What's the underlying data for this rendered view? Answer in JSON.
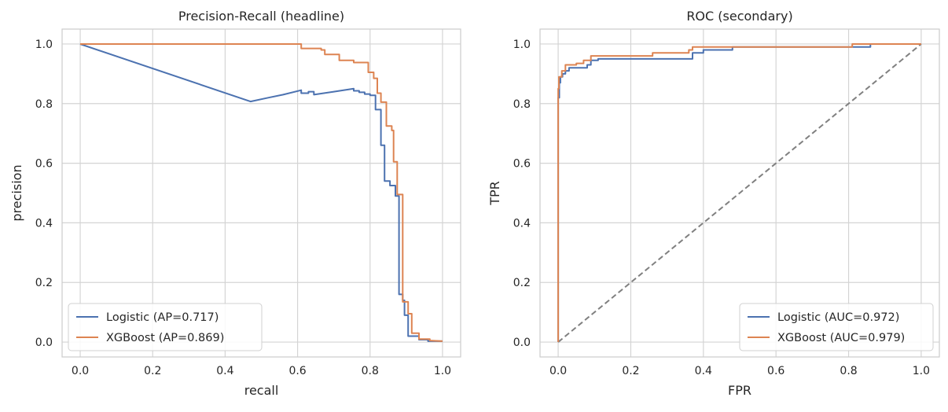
{
  "colors": {
    "logistic": "#4c72b0",
    "xgboost": "#dd8452",
    "diagonal": "#808080"
  },
  "chart_data": [
    {
      "type": "line",
      "title": "Precision-Recall (headline)",
      "xlabel": "recall",
      "ylabel": "precision",
      "xlim": [
        -0.05,
        1.05
      ],
      "ylim": [
        -0.05,
        1.05
      ],
      "xticks": [
        "0.0",
        "0.2",
        "0.4",
        "0.6",
        "0.8",
        "1.0"
      ],
      "yticks": [
        "0.0",
        "0.2",
        "0.4",
        "0.6",
        "0.8",
        "1.0"
      ],
      "grid": true,
      "legend_position": "lower-left",
      "series": [
        {
          "name": "Logistic (AP=0.717)",
          "step": true,
          "points": [
            [
              0.0,
              1.0
            ],
            [
              0.47,
              0.807
            ],
            [
              0.52,
              0.82
            ],
            [
              0.56,
              0.83
            ],
            [
              0.61,
              0.845
            ],
            [
              0.61,
              0.835
            ],
            [
              0.63,
              0.835
            ],
            [
              0.63,
              0.84
            ],
            [
              0.645,
              0.84
            ],
            [
              0.645,
              0.83
            ],
            [
              0.7,
              0.84
            ],
            [
              0.755,
              0.85
            ],
            [
              0.755,
              0.843
            ],
            [
              0.77,
              0.843
            ],
            [
              0.77,
              0.838
            ],
            [
              0.785,
              0.838
            ],
            [
              0.785,
              0.832
            ],
            [
              0.8,
              0.832
            ],
            [
              0.8,
              0.828
            ],
            [
              0.815,
              0.828
            ],
            [
              0.815,
              0.78
            ],
            [
              0.83,
              0.78
            ],
            [
              0.83,
              0.66
            ],
            [
              0.84,
              0.66
            ],
            [
              0.84,
              0.54
            ],
            [
              0.855,
              0.54
            ],
            [
              0.855,
              0.525
            ],
            [
              0.87,
              0.525
            ],
            [
              0.87,
              0.49
            ],
            [
              0.88,
              0.49
            ],
            [
              0.88,
              0.16
            ],
            [
              0.89,
              0.16
            ],
            [
              0.89,
              0.14
            ],
            [
              0.895,
              0.14
            ],
            [
              0.895,
              0.09
            ],
            [
              0.905,
              0.09
            ],
            [
              0.905,
              0.02
            ],
            [
              0.935,
              0.02
            ],
            [
              0.935,
              0.008
            ],
            [
              0.96,
              0.008
            ],
            [
              0.96,
              0.003
            ],
            [
              1.0,
              0.003
            ]
          ]
        },
        {
          "name": "XGBoost (AP=0.869)",
          "step": true,
          "points": [
            [
              0.0,
              1.0
            ],
            [
              0.61,
              1.0
            ],
            [
              0.61,
              0.985
            ],
            [
              0.665,
              0.985
            ],
            [
              0.665,
              0.98
            ],
            [
              0.675,
              0.98
            ],
            [
              0.675,
              0.965
            ],
            [
              0.715,
              0.965
            ],
            [
              0.715,
              0.945
            ],
            [
              0.755,
              0.945
            ],
            [
              0.755,
              0.938
            ],
            [
              0.795,
              0.938
            ],
            [
              0.795,
              0.905
            ],
            [
              0.81,
              0.905
            ],
            [
              0.81,
              0.885
            ],
            [
              0.82,
              0.885
            ],
            [
              0.82,
              0.835
            ],
            [
              0.83,
              0.835
            ],
            [
              0.83,
              0.805
            ],
            [
              0.845,
              0.805
            ],
            [
              0.845,
              0.725
            ],
            [
              0.86,
              0.725
            ],
            [
              0.86,
              0.71
            ],
            [
              0.865,
              0.71
            ],
            [
              0.865,
              0.605
            ],
            [
              0.875,
              0.605
            ],
            [
              0.875,
              0.495
            ],
            [
              0.89,
              0.495
            ],
            [
              0.89,
              0.135
            ],
            [
              0.905,
              0.135
            ],
            [
              0.905,
              0.095
            ],
            [
              0.915,
              0.095
            ],
            [
              0.915,
              0.03
            ],
            [
              0.935,
              0.03
            ],
            [
              0.935,
              0.01
            ],
            [
              0.965,
              0.01
            ],
            [
              0.965,
              0.005
            ],
            [
              1.0,
              0.003
            ]
          ]
        }
      ]
    },
    {
      "type": "line",
      "title": "ROC (secondary)",
      "xlabel": "FPR",
      "ylabel": "TPR",
      "xlim": [
        -0.05,
        1.05
      ],
      "ylim": [
        -0.05,
        1.05
      ],
      "xticks": [
        "0.0",
        "0.2",
        "0.4",
        "0.6",
        "0.8",
        "1.0"
      ],
      "yticks": [
        "0.0",
        "0.2",
        "0.4",
        "0.6",
        "0.8",
        "1.0"
      ],
      "grid": true,
      "legend_position": "lower-right",
      "diagonal": [
        [
          0,
          0
        ],
        [
          1,
          1
        ]
      ],
      "series": [
        {
          "name": "Logistic (AUC=0.972)",
          "step": true,
          "points": [
            [
              0,
              0
            ],
            [
              0,
              0.82
            ],
            [
              0.003,
              0.82
            ],
            [
              0.003,
              0.87
            ],
            [
              0.006,
              0.87
            ],
            [
              0.006,
              0.89
            ],
            [
              0.012,
              0.89
            ],
            [
              0.012,
              0.9
            ],
            [
              0.02,
              0.9
            ],
            [
              0.02,
              0.91
            ],
            [
              0.03,
              0.91
            ],
            [
              0.03,
              0.92
            ],
            [
              0.08,
              0.92
            ],
            [
              0.08,
              0.93
            ],
            [
              0.09,
              0.93
            ],
            [
              0.09,
              0.945
            ],
            [
              0.11,
              0.945
            ],
            [
              0.11,
              0.95
            ],
            [
              0.37,
              0.95
            ],
            [
              0.37,
              0.97
            ],
            [
              0.4,
              0.97
            ],
            [
              0.4,
              0.98
            ],
            [
              0.48,
              0.98
            ],
            [
              0.48,
              0.99
            ],
            [
              0.86,
              0.99
            ],
            [
              0.86,
              1.0
            ],
            [
              1.0,
              1.0
            ]
          ]
        },
        {
          "name": "XGBoost (AUC=0.979)",
          "step": true,
          "points": [
            [
              0,
              0
            ],
            [
              0,
              0.85
            ],
            [
              0.002,
              0.85
            ],
            [
              0.002,
              0.89
            ],
            [
              0.01,
              0.89
            ],
            [
              0.01,
              0.91
            ],
            [
              0.02,
              0.91
            ],
            [
              0.02,
              0.93
            ],
            [
              0.05,
              0.93
            ],
            [
              0.05,
              0.935
            ],
            [
              0.07,
              0.935
            ],
            [
              0.07,
              0.945
            ],
            [
              0.09,
              0.945
            ],
            [
              0.09,
              0.96
            ],
            [
              0.26,
              0.96
            ],
            [
              0.26,
              0.97
            ],
            [
              0.36,
              0.97
            ],
            [
              0.36,
              0.98
            ],
            [
              0.37,
              0.98
            ],
            [
              0.37,
              0.99
            ],
            [
              0.81,
              0.99
            ],
            [
              0.81,
              1.0
            ],
            [
              1.0,
              1.0
            ]
          ]
        }
      ]
    }
  ]
}
